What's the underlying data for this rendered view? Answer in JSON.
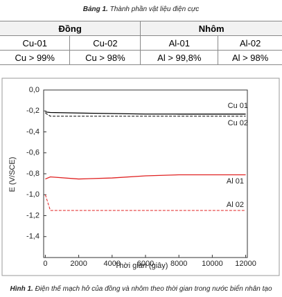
{
  "table_caption": {
    "label": "Bảng 1.",
    "text": "Thành phần vật liệu điện cực"
  },
  "table": {
    "groups": [
      "Đồng",
      "Nhôm"
    ],
    "rows": [
      [
        "Cu-01",
        "Cu-02",
        "Al-01",
        "Al-02"
      ],
      [
        "Cu > 99%",
        "Cu > 98%",
        "Al > 99,8%",
        "Al > 98%"
      ]
    ]
  },
  "chart_data": {
    "type": "line",
    "x": [
      0,
      300,
      2000,
      4000,
      6000,
      8000,
      10000,
      12000
    ],
    "series": [
      {
        "name": "Cu 01",
        "color": "#000000",
        "dash": false,
        "values": [
          -0.21,
          -0.215,
          -0.22,
          -0.225,
          -0.23,
          -0.23,
          -0.23,
          -0.23
        ]
      },
      {
        "name": "Cu 02",
        "color": "#000000",
        "dash": true,
        "values": [
          -0.22,
          -0.25,
          -0.25,
          -0.25,
          -0.25,
          -0.25,
          -0.25,
          -0.25
        ]
      },
      {
        "name": "Al 01",
        "color": "#e02020",
        "dash": false,
        "values": [
          -0.85,
          -0.83,
          -0.85,
          -0.84,
          -0.82,
          -0.81,
          -0.81,
          -0.81
        ]
      },
      {
        "name": "Al 02",
        "color": "#e02020",
        "dash": true,
        "values": [
          -1.0,
          -1.15,
          -1.15,
          -1.15,
          -1.15,
          -1.15,
          -1.15,
          -1.15
        ]
      }
    ],
    "xlabel": "Thời gian (giây)",
    "ylabel": "E (V/SCE)",
    "xlim": [
      -100,
      12100
    ],
    "ylim": [
      -1.6,
      0
    ],
    "xticks": [
      0,
      2000,
      4000,
      6000,
      8000,
      10000,
      12000
    ],
    "yticks": [
      {
        "value": 0,
        "label": "0,0"
      },
      {
        "value": -0.2,
        "label": "-0,2"
      },
      {
        "value": -0.4,
        "label": "-0,4"
      },
      {
        "value": -0.6,
        "label": "-0,6"
      },
      {
        "value": -0.8,
        "label": "-0,8"
      },
      {
        "value": -1.0,
        "label": "-1,0"
      },
      {
        "value": -1.2,
        "label": "-1,2"
      },
      {
        "value": -1.4,
        "label": "-1,4"
      }
    ]
  },
  "figure_caption": {
    "label": "Hình 1.",
    "text": "Điện thế mạch hở của đồng và nhôm theo thời gian trong nước biển nhân tạo"
  }
}
